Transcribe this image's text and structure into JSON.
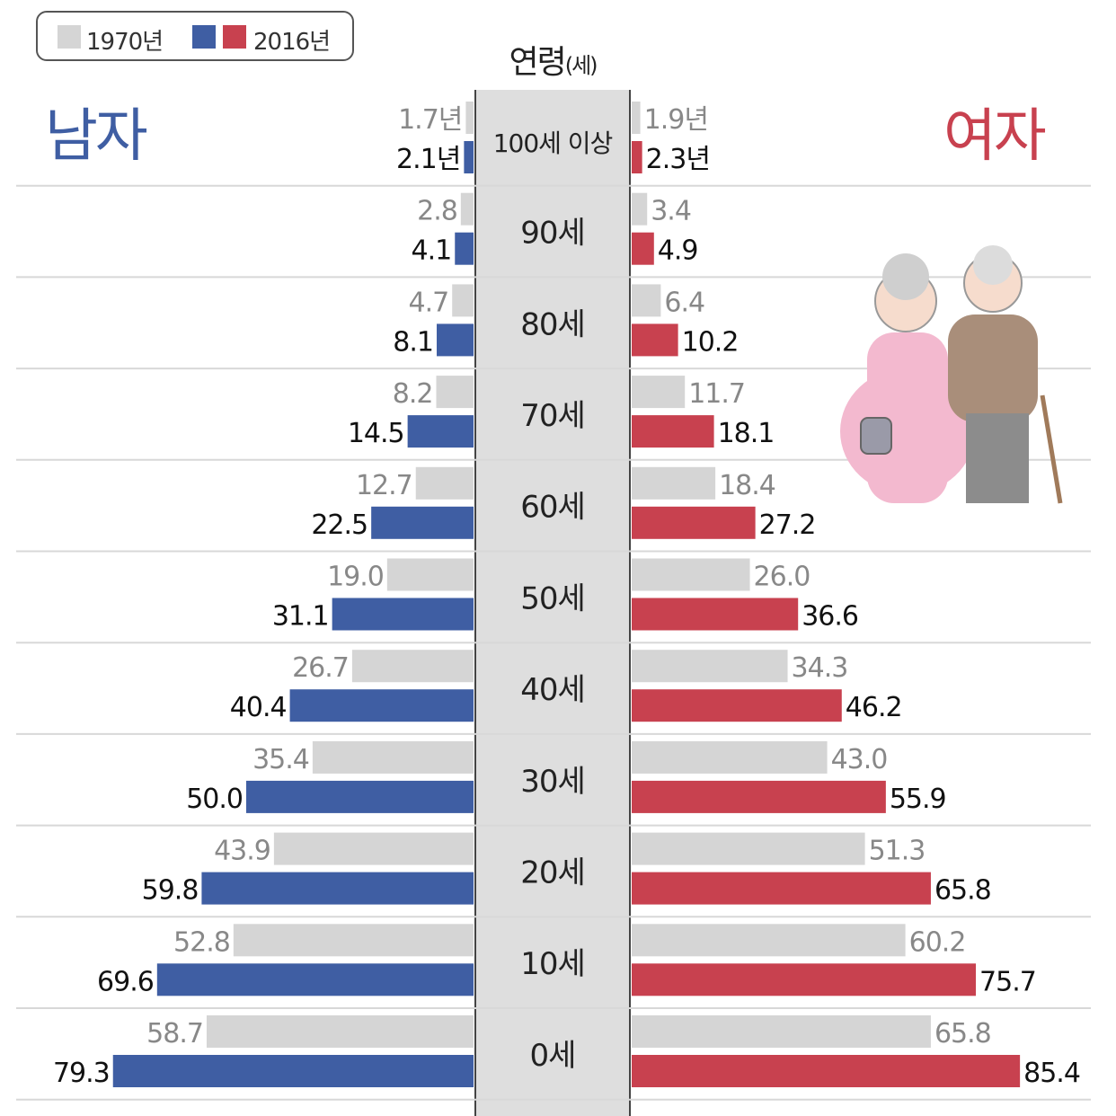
{
  "legend": {
    "label_1970": "1970년",
    "label_2016": "2016년"
  },
  "titles": {
    "male": "남자",
    "female": "여자",
    "age_header": "연령",
    "age_unit": "(세)"
  },
  "colors": {
    "gray_1970": "#d5d5d5",
    "male_2016": "#3f5ea3",
    "female_2016": "#c8414f",
    "male_title": "#3f5ea3",
    "female_title": "#c8414f",
    "age_band": "#dedede"
  },
  "chart_data": {
    "type": "bar",
    "orientation": "horizontal",
    "layout": "diverging-pyramid",
    "categories": [
      "100세 이상",
      "90세",
      "80세",
      "70세",
      "60세",
      "50세",
      "40세",
      "30세",
      "20세",
      "10세",
      "0세"
    ],
    "series": [
      {
        "name": "1970년",
        "group": "남자",
        "values": [
          1.7,
          2.8,
          4.7,
          8.2,
          12.7,
          19.0,
          26.7,
          35.4,
          43.9,
          52.8,
          58.7
        ]
      },
      {
        "name": "2016년",
        "group": "남자",
        "values": [
          2.1,
          4.1,
          8.1,
          14.5,
          22.5,
          31.1,
          40.4,
          50.0,
          59.8,
          69.6,
          79.3
        ]
      },
      {
        "name": "1970년",
        "group": "여자",
        "values": [
          1.9,
          3.4,
          6.4,
          11.7,
          18.4,
          26.0,
          34.3,
          43.0,
          51.3,
          60.2,
          65.8
        ]
      },
      {
        "name": "2016년",
        "group": "여자",
        "values": [
          2.3,
          4.9,
          10.2,
          18.1,
          27.2,
          36.6,
          46.2,
          55.9,
          65.8,
          75.7,
          85.4
        ]
      }
    ],
    "labels": {
      "male_1970": [
        "1.7년",
        "2.8",
        "4.7",
        "8.2",
        "12.7",
        "19.0",
        "26.7",
        "35.4",
        "43.9",
        "52.8",
        "58.7"
      ],
      "male_2016": [
        "2.1년",
        "4.1",
        "8.1",
        "14.5",
        "22.5",
        "31.1",
        "40.4",
        "50.0",
        "59.8",
        "69.6",
        "79.3"
      ],
      "female_1970": [
        "1.9년",
        "3.4",
        "6.4",
        "11.7",
        "18.4",
        "26.0",
        "34.3",
        "43.0",
        "51.3",
        "60.2",
        "65.8"
      ],
      "female_2016": [
        "2.3년",
        "4.9",
        "10.2",
        "18.1",
        "27.2",
        "36.6",
        "46.2",
        "55.9",
        "65.8",
        "75.7",
        "85.4"
      ]
    },
    "xlim": [
      0,
      90
    ],
    "grid": true,
    "legend_position": "top-left"
  }
}
